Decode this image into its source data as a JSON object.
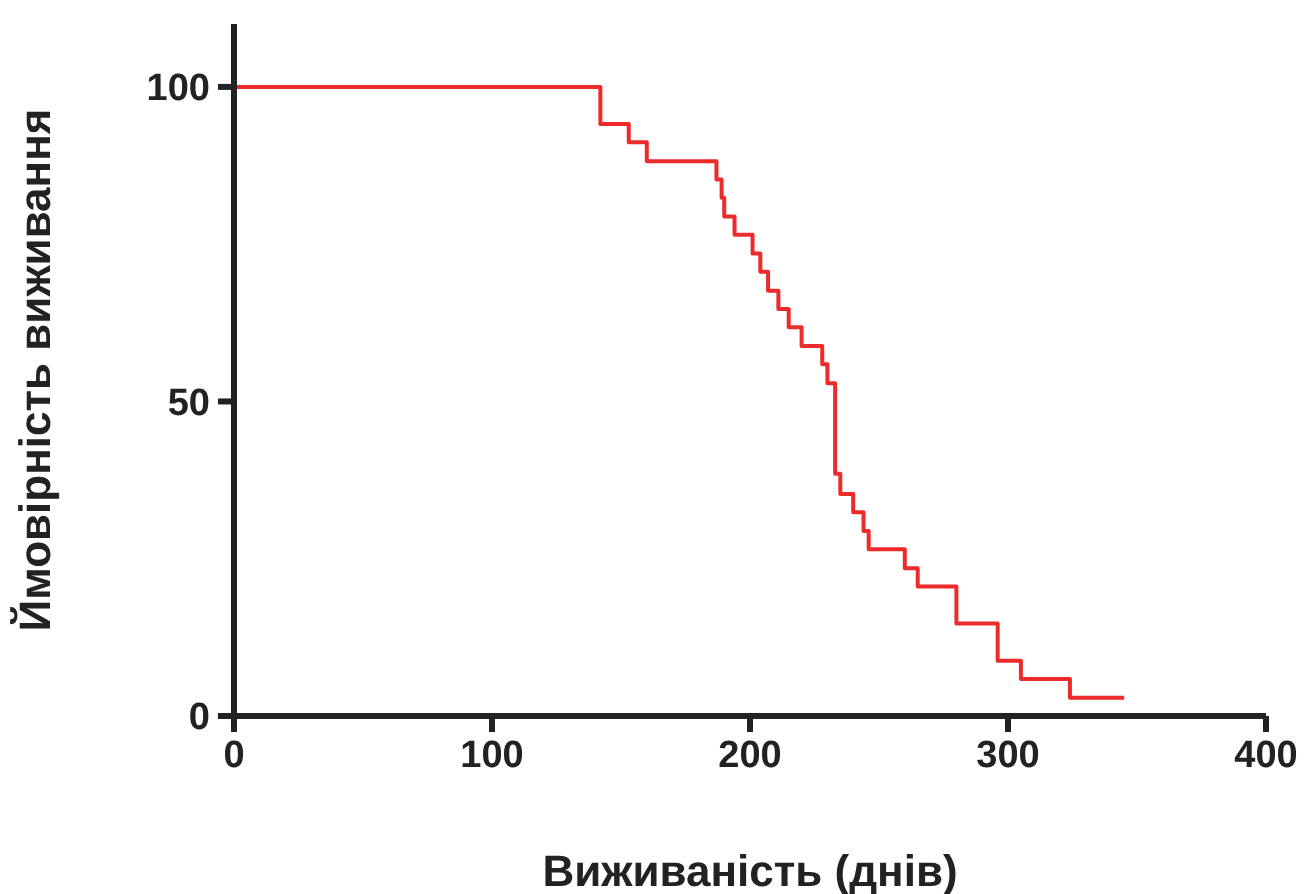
{
  "chart_data": {
    "type": "step",
    "xlabel": "Виживаність (днів)",
    "ylabel": "Ймовірність виживання",
    "x": [
      0,
      142,
      153,
      160,
      187,
      189,
      190,
      194,
      201,
      204,
      207,
      211,
      215,
      220,
      228,
      230,
      233,
      235,
      240,
      244,
      246,
      260,
      265,
      280,
      296,
      305,
      324,
      345
    ],
    "series": [
      {
        "color": "#ee2b2b",
        "values": [
          100,
          94.1,
          91.2,
          88.2,
          85.3,
          82.4,
          79.4,
          76.5,
          73.5,
          70.6,
          67.6,
          64.7,
          61.8,
          58.8,
          55.9,
          52.9,
          38.5,
          35.3,
          32.4,
          29.4,
          26.5,
          23.5,
          20.6,
          14.7,
          8.8,
          5.9,
          2.9,
          2.9
        ]
      }
    ],
    "xlim": [
      0,
      400
    ],
    "xticks": [
      0,
      100,
      200,
      300,
      400
    ],
    "ylim": [
      0,
      110
    ],
    "yticks": [
      0,
      50,
      100
    ],
    "grid": false,
    "legend": false,
    "marker": "none",
    "line_style": "solid"
  }
}
